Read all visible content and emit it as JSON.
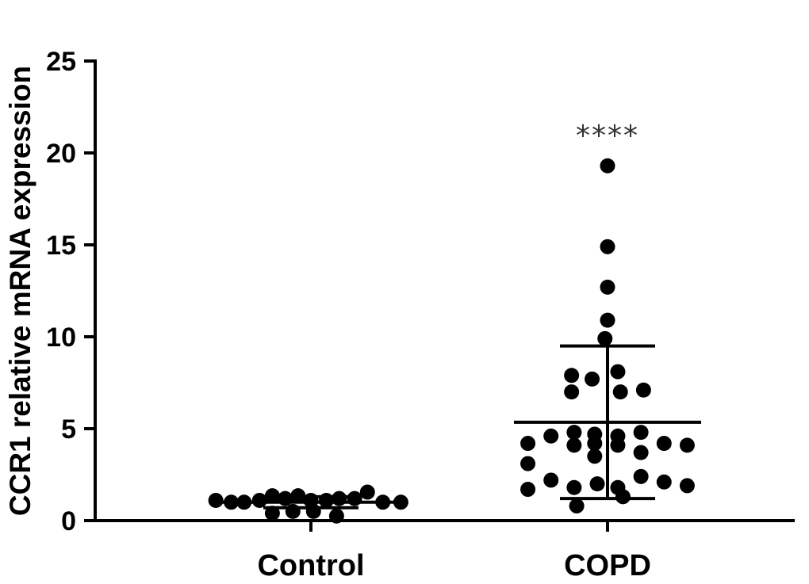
{
  "chart_data": {
    "type": "scatter",
    "title": "",
    "xlabel": "",
    "ylabel": "CCR1 relative mRNA expression",
    "ylim": [
      0,
      25
    ],
    "yticks": [
      0,
      5,
      10,
      15,
      20,
      25
    ],
    "categories": [
      "Control",
      "COPD"
    ],
    "groups": [
      {
        "name": "Control",
        "mean": 1.0,
        "sd_low": 0.7,
        "sd_high": 1.3,
        "points": [
          {
            "x": -0.74,
            "y": 1.1
          },
          {
            "x": -0.62,
            "y": 1.0
          },
          {
            "x": -0.52,
            "y": 1.0
          },
          {
            "x": -0.4,
            "y": 1.1
          },
          {
            "x": -0.3,
            "y": 1.35
          },
          {
            "x": -0.2,
            "y": 1.2
          },
          {
            "x": -0.1,
            "y": 1.35
          },
          {
            "x": 0.0,
            "y": 1.1
          },
          {
            "x": 0.12,
            "y": 1.1
          },
          {
            "x": 0.22,
            "y": 1.2
          },
          {
            "x": 0.34,
            "y": 1.2
          },
          {
            "x": 0.44,
            "y": 1.55
          },
          {
            "x": 0.56,
            "y": 1.0
          },
          {
            "x": 0.7,
            "y": 1.0
          },
          {
            "x": -0.3,
            "y": 0.4
          },
          {
            "x": -0.14,
            "y": 0.5
          },
          {
            "x": 0.02,
            "y": 0.5
          },
          {
            "x": 0.2,
            "y": 0.25
          }
        ]
      },
      {
        "name": "COPD",
        "mean": 5.35,
        "sd_low": 1.2,
        "sd_high": 9.5,
        "significance": "****",
        "points": [
          {
            "x": 0.0,
            "y": 19.3
          },
          {
            "x": 0.0,
            "y": 14.9
          },
          {
            "x": 0.0,
            "y": 12.7
          },
          {
            "x": 0.0,
            "y": 10.9
          },
          {
            "x": -0.02,
            "y": 9.9
          },
          {
            "x": -0.28,
            "y": 7.9
          },
          {
            "x": -0.12,
            "y": 7.7
          },
          {
            "x": 0.08,
            "y": 8.1
          },
          {
            "x": -0.28,
            "y": 7.0
          },
          {
            "x": 0.1,
            "y": 7.0
          },
          {
            "x": 0.28,
            "y": 7.1
          },
          {
            "x": -0.62,
            "y": 4.2
          },
          {
            "x": -0.44,
            "y": 4.6
          },
          {
            "x": -0.26,
            "y": 4.8
          },
          {
            "x": -0.1,
            "y": 4.7
          },
          {
            "x": 0.08,
            "y": 4.6
          },
          {
            "x": 0.26,
            "y": 4.8
          },
          {
            "x": 0.44,
            "y": 4.2
          },
          {
            "x": 0.62,
            "y": 4.1
          },
          {
            "x": -0.26,
            "y": 4.1
          },
          {
            "x": -0.1,
            "y": 4.2
          },
          {
            "x": 0.08,
            "y": 4.1
          },
          {
            "x": -0.1,
            "y": 3.5
          },
          {
            "x": 0.26,
            "y": 3.7
          },
          {
            "x": -0.62,
            "y": 3.1
          },
          {
            "x": -0.44,
            "y": 2.2
          },
          {
            "x": -0.26,
            "y": 1.8
          },
          {
            "x": -0.08,
            "y": 2.0
          },
          {
            "x": 0.08,
            "y": 1.8
          },
          {
            "x": 0.26,
            "y": 2.4
          },
          {
            "x": 0.44,
            "y": 2.1
          },
          {
            "x": 0.62,
            "y": 1.9
          },
          {
            "x": -0.62,
            "y": 1.7
          },
          {
            "x": 0.12,
            "y": 1.3
          },
          {
            "x": -0.24,
            "y": 0.8
          }
        ]
      }
    ]
  }
}
